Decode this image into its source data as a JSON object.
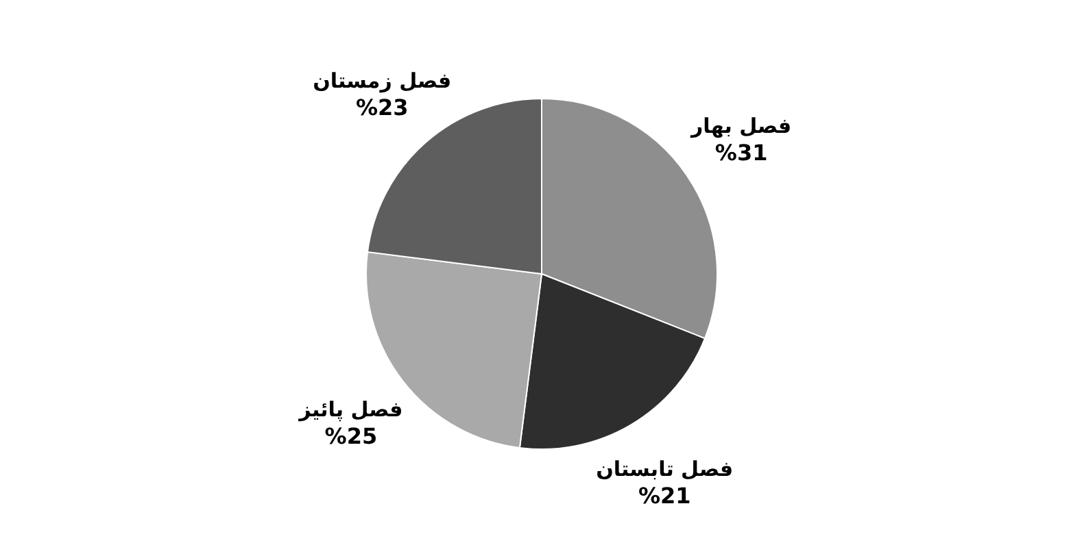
{
  "chart_data": {
    "type": "pie",
    "categories": [
      "فصل بهار",
      "فصل تابستان",
      "فصل پائیز",
      "فصل زمستان"
    ],
    "values": [
      31,
      21,
      25,
      23
    ],
    "colors": [
      "#8e8e8e",
      "#2e2e2e",
      "#a9a9a9",
      "#5e5e5e"
    ],
    "value_labels": [
      "%31",
      "%21",
      "%25",
      "%23"
    ]
  }
}
